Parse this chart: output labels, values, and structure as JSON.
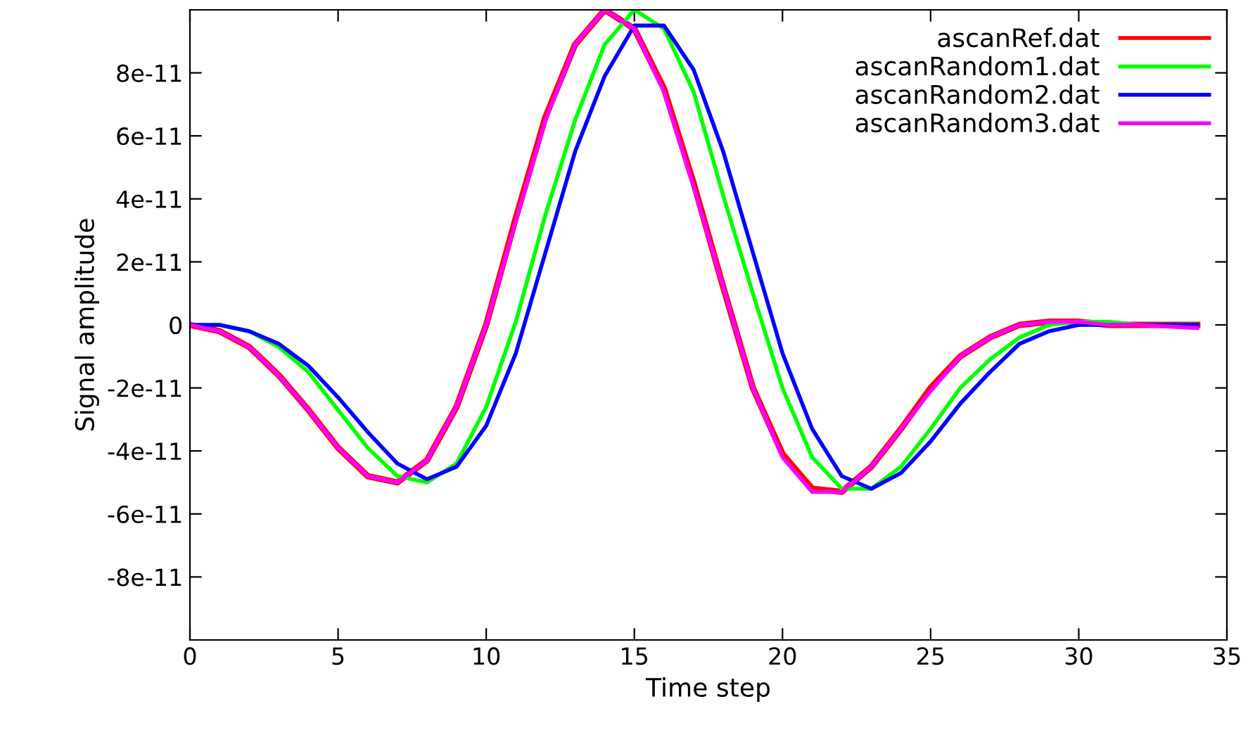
{
  "chart_data": {
    "type": "line",
    "xlabel": "Time step",
    "ylabel": "Signal amplitude",
    "x": [
      0,
      1,
      2,
      3,
      4,
      5,
      6,
      7,
      8,
      9,
      10,
      11,
      12,
      13,
      14,
      15,
      16,
      17,
      18,
      19,
      20,
      21,
      22,
      23,
      24,
      25,
      26,
      27,
      28,
      29,
      30,
      31,
      32,
      33,
      34
    ],
    "xlim": [
      0,
      35
    ],
    "xticks": [
      0,
      5,
      10,
      15,
      20,
      25,
      30,
      35
    ],
    "ylim": [
      -1e-10,
      1e-10
    ],
    "yticks": [
      -8e-11,
      -6e-11,
      -4e-11,
      -2e-11,
      0,
      2e-11,
      4e-11,
      6e-11,
      8e-11
    ],
    "grid": false,
    "legend": "top right",
    "line_style": "solid",
    "marker": "none",
    "series": [
      {
        "name": "ascanRef.dat",
        "color": "#ff0000",
        "values": [
          0,
          -2e-12,
          -7e-12,
          -1.6e-11,
          -2.7e-11,
          -3.9e-11,
          -4.8e-11,
          -5e-11,
          -4.3e-11,
          -2.6e-11,
          0,
          3.4e-11,
          6.6e-11,
          8.9e-11,
          1e-10,
          9.4e-11,
          7.5e-11,
          4.5e-11,
          1.2e-11,
          -2e-11,
          -4.1e-11,
          -5.2e-11,
          -5.3e-11,
          -4.5e-11,
          -3.3e-11,
          -2e-11,
          -1e-11,
          -4e-12,
          0,
          1e-12,
          1e-12,
          0,
          0,
          0,
          0
        ]
      },
      {
        "name": "ascanRandom1.dat",
        "color": "#00ff00",
        "values": [
          0,
          0,
          -2e-12,
          -7e-12,
          -1.5e-11,
          -2.7e-11,
          -3.9e-11,
          -4.8e-11,
          -5e-11,
          -4.4e-11,
          -2.6e-11,
          1e-12,
          3.5e-11,
          6.5e-11,
          8.9e-11,
          1e-10,
          9.4e-11,
          7.4e-11,
          4.1e-11,
          1e-11,
          -2e-11,
          -4.2e-11,
          -5.2e-11,
          -5.2e-11,
          -4.5e-11,
          -3.3e-11,
          -2e-11,
          -1.1e-11,
          -4e-12,
          0,
          1e-12,
          1e-12,
          0,
          0,
          0
        ]
      },
      {
        "name": "ascanRandom2.dat",
        "color": "#0000ff",
        "values": [
          0,
          0,
          -2e-12,
          -6e-12,
          -1.3e-11,
          -2.3e-11,
          -3.4e-11,
          -4.4e-11,
          -4.9e-11,
          -4.5e-11,
          -3.2e-11,
          -9e-12,
          2.3e-11,
          5.5e-11,
          7.9e-11,
          9.5e-11,
          9.5e-11,
          8.1e-11,
          5.5e-11,
          2.3e-11,
          -9e-12,
          -3.3e-11,
          -4.8e-11,
          -5.2e-11,
          -4.7e-11,
          -3.7e-11,
          -2.5e-11,
          -1.5e-11,
          -6e-12,
          -2e-12,
          0,
          0,
          0,
          0,
          0
        ]
      },
      {
        "name": "ascanRandom3.dat",
        "color": "#ff00ff",
        "values": [
          0,
          -2e-12,
          -7e-12,
          -1.6e-11,
          -2.7e-11,
          -3.9e-11,
          -4.8e-11,
          -5e-11,
          -4.3e-11,
          -2.6e-11,
          0,
          3.3e-11,
          6.5e-11,
          8.9e-11,
          1e-10,
          9.4e-11,
          7.4e-11,
          4.4e-11,
          1.2e-11,
          -2e-11,
          -4.2e-11,
          -5.3e-11,
          -5.3e-11,
          -4.5e-11,
          -3.3e-11,
          -2.1e-11,
          -1e-11,
          -4e-12,
          0,
          1e-12,
          1e-12,
          0,
          0,
          -5e-13,
          -1e-12
        ]
      }
    ]
  }
}
